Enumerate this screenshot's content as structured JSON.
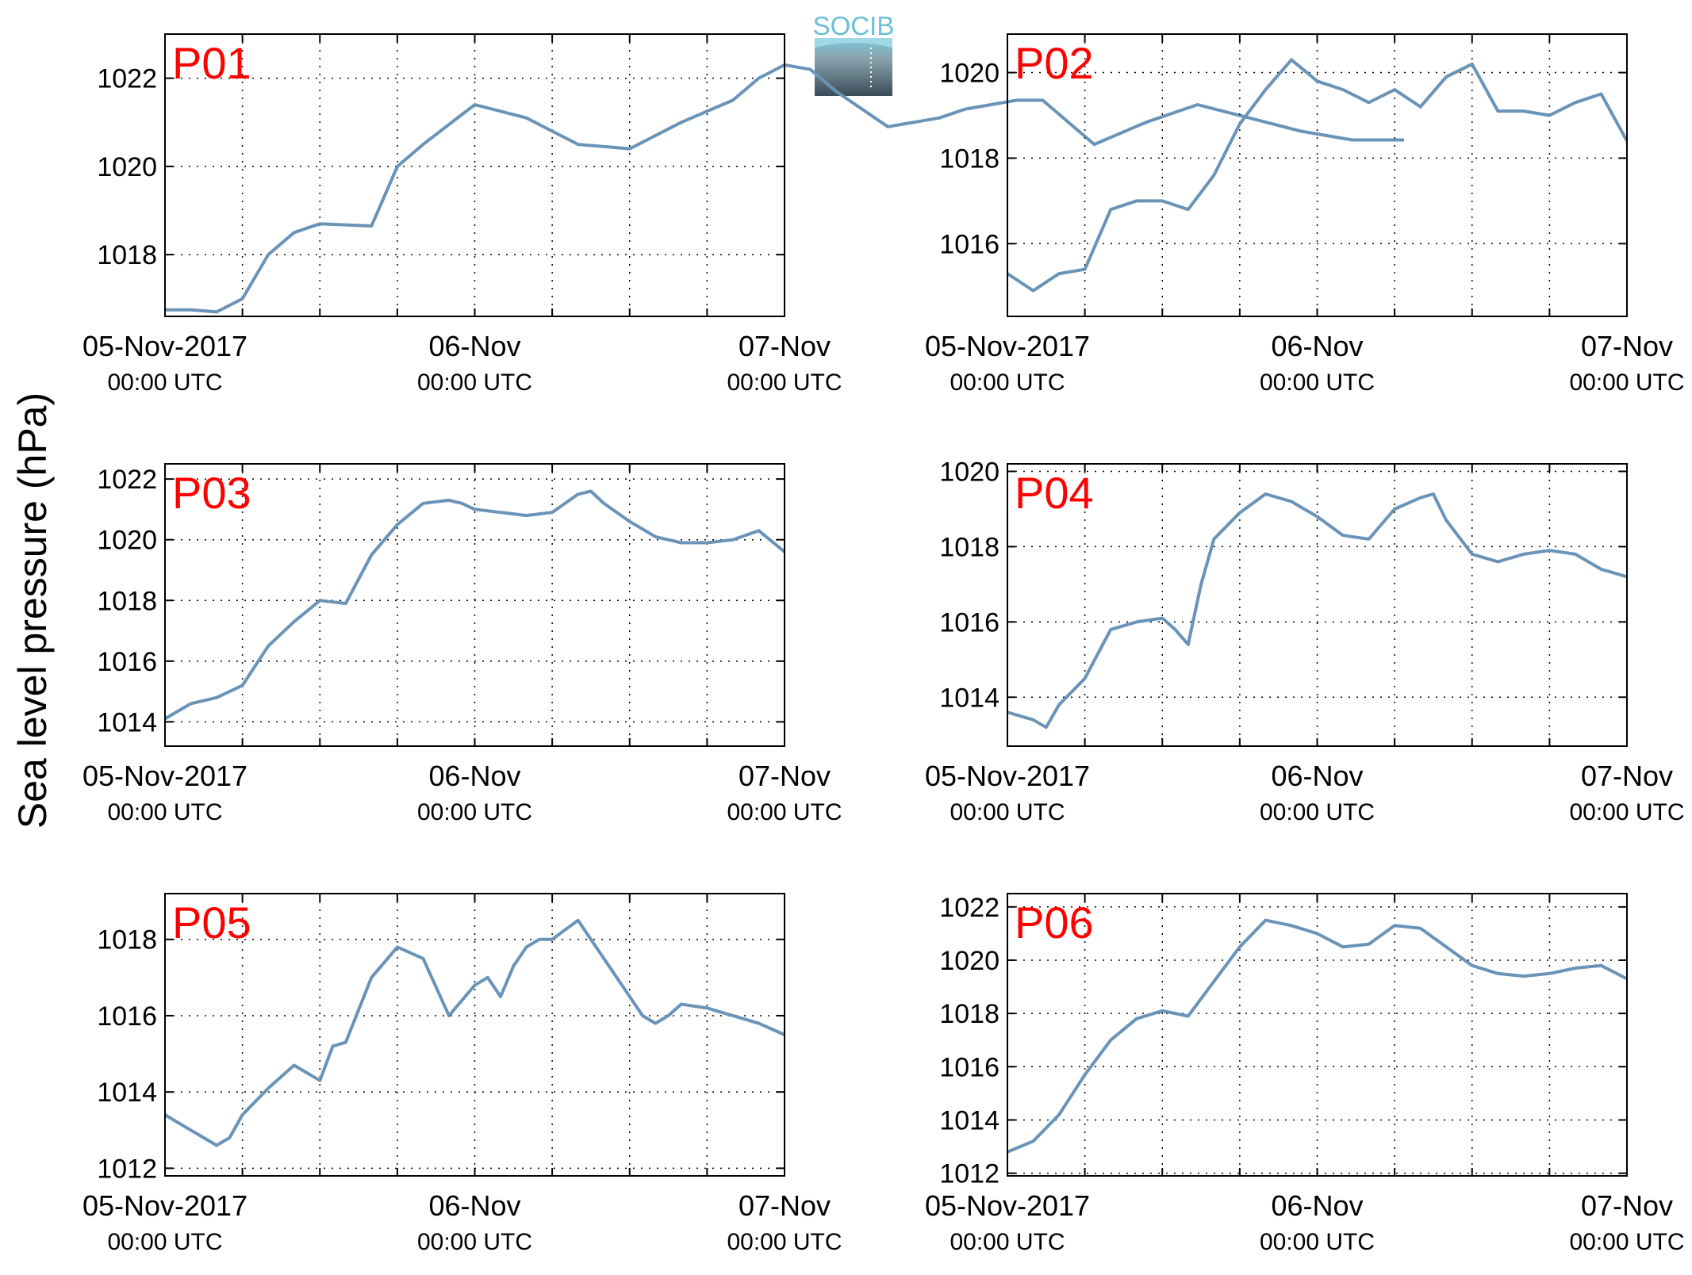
{
  "ylabel": "Sea level pressure (hPa)",
  "logo": {
    "text": "SOCIB",
    "colors": {
      "top": "#7ec8dc",
      "bottom": "#3a4d59",
      "text": "#6bbfd6"
    }
  },
  "colors": {
    "line": "#6a93b8",
    "label": "#ff0000",
    "axis": "#000000"
  },
  "x_ticks": [
    {
      "date": "05-Nov-2017",
      "time": "00:00 UTC"
    },
    {
      "date": "06-Nov",
      "time": "00:00 UTC"
    },
    {
      "date": "07-Nov",
      "time": "00:00 UTC"
    }
  ],
  "chart_data": [
    {
      "type": "line",
      "name": "P01",
      "xlim": [
        "2017-11-05 00:00",
        "2017-11-07 00:00"
      ],
      "ylim": [
        1016.6,
        1023.0
      ],
      "yticks": [
        1018,
        1020,
        1022
      ],
      "x_hours": [
        0,
        2,
        4,
        6,
        8,
        10,
        12,
        16,
        18,
        20,
        24,
        28,
        32,
        36,
        40,
        44,
        46,
        48,
        50,
        52,
        56,
        60,
        62,
        64,
        66,
        68,
        72,
        76,
        78,
        80,
        84,
        88,
        92,
        96
      ],
      "values": [
        1016.75,
        1016.75,
        1016.7,
        1017.0,
        1018.0,
        1018.5,
        1018.7,
        1018.65,
        1020.0,
        1020.5,
        1021.4,
        1021.1,
        1020.5,
        1020.4,
        1021.0,
        1021.5,
        1022.0,
        1022.3,
        1022.2,
        1021.7,
        1020.9,
        1021.1,
        1021.3,
        1021.4,
        1021.5,
        1021.5,
        1020.5,
        1021.0,
        1021.2,
        1021.4,
        1021.1,
        1020.8,
        1020.6,
        1020.6
      ]
    },
    {
      "type": "line",
      "name": "P02",
      "xlim": [
        "2017-11-05 00:00",
        "2017-11-07 00:00"
      ],
      "ylim": [
        1014.3,
        1020.9
      ],
      "yticks": [
        1016,
        1018,
        1020
      ],
      "x_hours": [
        0,
        2,
        4,
        6,
        8,
        10,
        12,
        14,
        16,
        18,
        20,
        22,
        24,
        26,
        28,
        30,
        32,
        34,
        36,
        38,
        40,
        42,
        44,
        46,
        48
      ],
      "values": [
        1015.3,
        1014.9,
        1015.3,
        1015.4,
        1016.8,
        1017.0,
        1017.0,
        1016.8,
        1017.6,
        1018.8,
        1019.6,
        1020.3,
        1019.8,
        1019.6,
        1019.3,
        1019.6,
        1019.2,
        1019.9,
        1020.2,
        1019.1,
        1019.1,
        1019.0,
        1019.3,
        1019.5,
        1018.4
      ]
    },
    {
      "type": "line",
      "name": "P03",
      "xlim": [
        "2017-11-05 00:00",
        "2017-11-07 00:00"
      ],
      "ylim": [
        1013.2,
        1022.5
      ],
      "yticks": [
        1014,
        1016,
        1018,
        1020,
        1022
      ],
      "x_hours": [
        0,
        2,
        4,
        6,
        8,
        10,
        12,
        14,
        16,
        18,
        20,
        22,
        23,
        24,
        26,
        28,
        30,
        32,
        33,
        34,
        36,
        38,
        40,
        42,
        44,
        46,
        48
      ],
      "values": [
        1014.1,
        1014.6,
        1014.8,
        1015.2,
        1016.5,
        1017.3,
        1018.0,
        1017.9,
        1019.5,
        1020.5,
        1021.2,
        1021.3,
        1021.2,
        1021.0,
        1020.9,
        1020.8,
        1020.9,
        1021.5,
        1021.6,
        1021.2,
        1020.6,
        1020.1,
        1019.9,
        1019.9,
        1020.0,
        1020.3,
        1019.6
      ]
    },
    {
      "type": "line",
      "name": "P04",
      "xlim": [
        "2017-11-05 00:00",
        "2017-11-07 00:00"
      ],
      "ylim": [
        1012.7,
        1020.2
      ],
      "yticks": [
        1014,
        1016,
        1018,
        1020
      ],
      "x_hours": [
        0,
        2,
        3,
        4,
        6,
        8,
        10,
        12,
        13,
        14,
        15,
        16,
        18,
        20,
        22,
        24,
        26,
        28,
        30,
        32,
        33,
        34,
        36,
        38,
        40,
        42,
        44,
        46,
        48
      ],
      "values": [
        1013.6,
        1013.4,
        1013.2,
        1013.8,
        1014.5,
        1015.8,
        1016.0,
        1016.1,
        1015.8,
        1015.4,
        1017.0,
        1018.2,
        1018.9,
        1019.4,
        1019.2,
        1018.8,
        1018.3,
        1018.2,
        1019.0,
        1019.3,
        1019.4,
        1018.7,
        1017.8,
        1017.6,
        1017.8,
        1017.9,
        1017.8,
        1017.4,
        1017.2
      ]
    },
    {
      "type": "line",
      "name": "P05",
      "xlim": [
        "2017-11-05 00:00",
        "2017-11-07 00:00"
      ],
      "ylim": [
        1011.8,
        1019.2
      ],
      "yticks": [
        1012,
        1014,
        1016,
        1018
      ],
      "x_hours": [
        0,
        2,
        4,
        5,
        6,
        8,
        10,
        12,
        13,
        14,
        16,
        18,
        20,
        22,
        24,
        25,
        26,
        27,
        28,
        29,
        30,
        32,
        33,
        34,
        36,
        37,
        38,
        39,
        40,
        42,
        44,
        46,
        48
      ],
      "values": [
        1013.4,
        1013.0,
        1012.6,
        1012.8,
        1013.4,
        1014.1,
        1014.7,
        1014.3,
        1015.2,
        1015.3,
        1017.0,
        1017.8,
        1017.5,
        1016.0,
        1016.8,
        1017.0,
        1016.5,
        1017.3,
        1017.8,
        1018.0,
        1018.0,
        1018.5,
        1018.0,
        1017.5,
        1016.5,
        1016.0,
        1015.8,
        1016.0,
        1016.3,
        1016.2,
        1016.0,
        1015.8,
        1015.5
      ]
    },
    {
      "type": "line",
      "name": "P06",
      "xlim": [
        "2017-11-05 00:00",
        "2017-11-07 00:00"
      ],
      "ylim": [
        1011.9,
        1022.5
      ],
      "yticks": [
        1012,
        1014,
        1016,
        1018,
        1020,
        1022
      ],
      "x_hours": [
        0,
        2,
        4,
        6,
        8,
        10,
        12,
        14,
        16,
        18,
        20,
        22,
        24,
        26,
        28,
        30,
        32,
        34,
        36,
        38,
        40,
        42,
        44,
        46,
        48
      ],
      "values": [
        1012.8,
        1013.2,
        1014.2,
        1015.7,
        1017.0,
        1017.8,
        1018.1,
        1017.9,
        1019.2,
        1020.5,
        1021.5,
        1021.3,
        1021.0,
        1020.5,
        1020.6,
        1021.3,
        1021.2,
        1020.5,
        1019.8,
        1019.5,
        1019.4,
        1019.5,
        1019.7,
        1019.8,
        1019.3
      ]
    }
  ]
}
